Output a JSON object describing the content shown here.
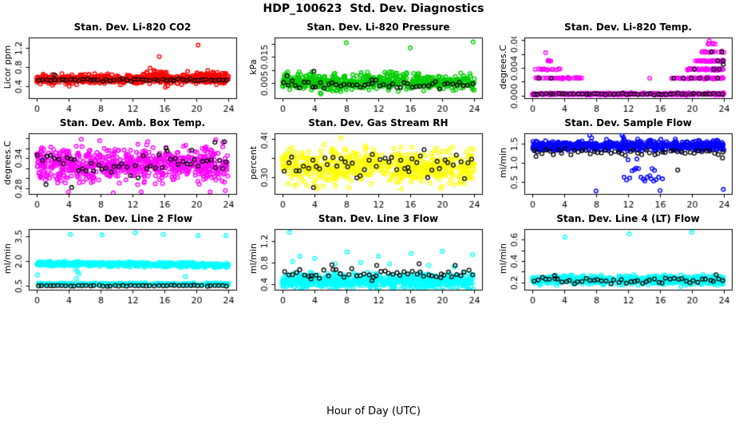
{
  "figure": {
    "title": "HDP_100623  Std. Dev. Diagnostics",
    "xlabel": "Hour of Day (UTC)",
    "background": "#ffffff",
    "axis_color": "#000000",
    "overlay_color": "#000000",
    "xlim": [
      -0.96,
      24.96
    ],
    "xticks": [
      0,
      4,
      8,
      12,
      16,
      20,
      24
    ],
    "xtick_labels": [
      "0",
      "4",
      "8",
      "12",
      "16",
      "20",
      "24"
    ],
    "marker": "open-circle",
    "grid": false,
    "legend": "none"
  },
  "chart_data": [
    {
      "type": "scatter",
      "title": "Stan. Dev. Li-820 CO2",
      "ylabel": "Licor ppm",
      "color": "#FF0000",
      "ylim": [
        0.15,
        1.42
      ],
      "ytick_values": [
        0.4,
        0.8,
        1.2
      ],
      "ytick_labels": [
        "0.4",
        "0.8",
        "1.2"
      ],
      "bands": [
        {
          "x_range": [
            0,
            24
          ],
          "center": 0.55,
          "spread": 0.05,
          "n": 480,
          "trend": 0
        },
        {
          "x_range": [
            13.5,
            16.5
          ],
          "center": 0.62,
          "spread": 0.06,
          "n": 28,
          "trend": 0
        },
        {
          "x_range": [
            20,
            24
          ],
          "center": 0.6,
          "spread": 0.055,
          "n": 60,
          "trend": 0
        }
      ],
      "outliers": [
        [
          20.2,
          1.26
        ],
        [
          15.35,
          1.02
        ],
        [
          14.2,
          0.78
        ],
        [
          14.7,
          0.73
        ],
        [
          15.1,
          0.7
        ],
        [
          15.9,
          0.69
        ],
        [
          16.2,
          0.66
        ],
        [
          18.9,
          0.71
        ],
        [
          13.8,
          0.68
        ],
        [
          21.4,
          0.73
        ],
        [
          22.6,
          0.69
        ],
        [
          23.2,
          0.67
        ],
        [
          8.9,
          0.66
        ],
        [
          4.1,
          0.4
        ],
        [
          2.0,
          0.42
        ],
        [
          10.5,
          0.43
        ],
        [
          16.1,
          0.38
        ],
        [
          16.4,
          0.41
        ]
      ],
      "black": {
        "center": 0.53,
        "spread": 0.015,
        "extra": [
          [
            2.25,
            0.64
          ]
        ]
      }
    },
    {
      "type": "scatter",
      "title": "Stan. Dev. Li-820 Pressure",
      "ylabel": "kPa",
      "color": "#00CD00",
      "ylim": [
        -0.0008,
        0.0225
      ],
      "ytick_values": [
        0.005,
        0.01,
        0.015,
        0.02
      ],
      "ytick_labels": [
        "0.005",
        "",
        "0.015",
        ""
      ],
      "bands": [
        {
          "x_range": [
            0,
            24
          ],
          "center": 0.0055,
          "spread": 0.0016,
          "n": 520,
          "trend": 0
        }
      ],
      "outliers": [
        [
          8.0,
          0.0205
        ],
        [
          16.0,
          0.0185
        ],
        [
          23.85,
          0.0208
        ],
        [
          4.85,
          0.0008
        ],
        [
          4.75,
          0.0012
        ]
      ],
      "black": {
        "center": 0.0046,
        "spread": 0.0008,
        "extra": [
          [
            3.95,
            0.0095
          ],
          [
            0.6,
            0.0078
          ],
          [
            11.2,
            0.0062
          ]
        ]
      }
    },
    {
      "type": "scatter",
      "title": "Stan. Dev. Li-820 Temp.",
      "ylabel": "degrees.C",
      "color": "#FF00FF",
      "ylim": [
        -0.0004,
        0.0084
      ],
      "ytick_values": [
        0.0,
        0.002,
        0.004,
        0.006,
        0.008
      ],
      "ytick_labels": [
        "0.000",
        "",
        "0.004",
        "",
        "0.008"
      ],
      "bands": [
        {
          "x_range": [
            0,
            24
          ],
          "center": 0.0002,
          "spread": 8e-05,
          "n": 420,
          "trend": 0
        },
        {
          "x_range": [
            0,
            6.3
          ],
          "center": 0.0025,
          "spread": 6e-05,
          "n": 34,
          "trend": 0
        },
        {
          "x_range": [
            0.4,
            3.6
          ],
          "center": 0.0038,
          "spread": 6e-05,
          "n": 14,
          "trend": 0
        },
        {
          "x_range": [
            1.8,
            2.4
          ],
          "center": 0.005,
          "spread": 6e-05,
          "n": 4,
          "trend": 0
        },
        {
          "x_range": [
            17.3,
            24
          ],
          "center": 0.0025,
          "spread": 6e-05,
          "n": 60,
          "trend": 0
        },
        {
          "x_range": [
            19.3,
            24
          ],
          "center": 0.0038,
          "spread": 6e-05,
          "n": 55,
          "trend": 0
        },
        {
          "x_range": [
            20.4,
            24
          ],
          "center": 0.005,
          "spread": 6e-05,
          "n": 28,
          "trend": 0
        },
        {
          "x_range": [
            21.2,
            24
          ],
          "center": 0.0063,
          "spread": 6e-05,
          "n": 14,
          "trend": 0
        },
        {
          "x_range": [
            21.8,
            23.4
          ],
          "center": 0.0075,
          "spread": 6e-05,
          "n": 6,
          "trend": 0
        }
      ],
      "outliers": [
        [
          1.7,
          0.0062
        ],
        [
          2.1,
          0.005
        ],
        [
          14.7,
          0.0025
        ],
        [
          5.6,
          0.0025
        ],
        [
          5.9,
          0.0025
        ],
        [
          22.15,
          0.0079
        ]
      ],
      "black": {
        "center": 0.0002,
        "spread": 6e-05,
        "extra": [
          [
            0.9,
            0.0025
          ],
          [
            2.4,
            0.0025
          ],
          [
            17.7,
            0.0025
          ],
          [
            18.9,
            0.0025
          ],
          [
            19.9,
            0.0025
          ],
          [
            20.9,
            0.0025
          ],
          [
            21.9,
            0.0025
          ],
          [
            23.2,
            0.0025
          ],
          [
            20.3,
            0.0038
          ],
          [
            22.7,
            0.0038
          ],
          [
            23.4,
            0.0038
          ],
          [
            23.2,
            0.005
          ],
          [
            23.9,
            0.005
          ],
          [
            22.4,
            0.0063
          ],
          [
            23.7,
            0.0063
          ],
          [
            23.9,
            0.0045
          ]
        ]
      }
    },
    {
      "type": "scatter",
      "title": "Stan. Dev. Amb. Box Temp.",
      "ylabel": "degrees.C",
      "color": "#FF00FF",
      "ylim": [
        0.268,
        0.39
      ],
      "ytick_values": [
        0.28,
        0.3,
        0.32,
        0.34,
        0.36,
        0.38
      ],
      "ytick_labels": [
        "0.28",
        "",
        "",
        "0.34",
        "",
        ""
      ],
      "bands": [
        {
          "x_range": [
            0,
            24
          ],
          "center": 0.327,
          "spread": 0.017,
          "n": 700,
          "trend": 0
        }
      ],
      "outliers": [
        [
          5.6,
          0.378
        ],
        [
          7.9,
          0.375
        ],
        [
          22.4,
          0.377
        ],
        [
          23.3,
          0.372
        ],
        [
          13.9,
          0.373
        ],
        [
          4.0,
          0.272
        ],
        [
          9.6,
          0.27
        ],
        [
          13.1,
          0.272
        ],
        [
          21.7,
          0.272
        ],
        [
          23.6,
          0.275
        ]
      ],
      "black": {
        "center": 0.328,
        "spread": 0.012,
        "extra": [
          [
            4.4,
            0.281
          ],
          [
            1.2,
            0.287
          ],
          [
            22.3,
            0.372
          ],
          [
            23.5,
            0.373
          ],
          [
            19.4,
            0.356
          ],
          [
            16.2,
            0.36
          ]
        ]
      }
    },
    {
      "type": "scatter",
      "title": "Stan. Dev. Gas Stream RH",
      "ylabel": "percent",
      "color": "#FFFF00",
      "ylim": [
        0.255,
        0.415
      ],
      "ytick_values": [
        0.3,
        0.35,
        0.4
      ],
      "ytick_labels": [
        "0.30",
        "",
        "0.40"
      ],
      "bands": [
        {
          "x_range": [
            0,
            24
          ],
          "center": 0.327,
          "spread": 0.022,
          "n": 620,
          "trend": 0
        }
      ],
      "outliers": [
        [
          7.35,
          0.403
        ],
        [
          5.2,
          0.385
        ],
        [
          10.4,
          0.382
        ],
        [
          16.2,
          0.378
        ],
        [
          21.3,
          0.378
        ],
        [
          23.5,
          0.375
        ],
        [
          4.4,
          0.268
        ],
        [
          8.3,
          0.272
        ],
        [
          14.9,
          0.268
        ],
        [
          19.8,
          0.27
        ],
        [
          3.9,
          0.273
        ]
      ],
      "black": {
        "center": 0.332,
        "spread": 0.02,
        "extra": [
          [
            3.9,
            0.272
          ],
          [
            15.7,
            0.325
          ]
        ]
      }
    },
    {
      "type": "scatter",
      "title": "Stan. Dev. Sample Flow",
      "ylabel": "ml/min",
      "color": "#0000FF",
      "ylim": [
        0.18,
        1.78
      ],
      "ytick_values": [
        0.5,
        1.0,
        1.5
      ],
      "ytick_labels": [
        "0.5",
        "1.0",
        "1.5"
      ],
      "bands": [
        {
          "x_range": [
            0,
            24
          ],
          "center": 1.45,
          "spread": 0.06,
          "n": 600,
          "trend": 0
        }
      ],
      "outliers": [
        [
          7.2,
          1.73
        ],
        [
          7.45,
          1.66
        ],
        [
          11.25,
          1.73
        ],
        [
          11.4,
          1.68
        ],
        [
          11.5,
          1.62
        ],
        [
          13.2,
          1.63
        ],
        [
          9.3,
          1.62
        ],
        [
          14.8,
          1.6
        ],
        [
          16.1,
          1.62
        ],
        [
          17.9,
          1.63
        ],
        [
          8.0,
          0.26
        ],
        [
          16.0,
          0.27
        ],
        [
          23.9,
          0.3
        ],
        [
          11.5,
          0.62
        ],
        [
          11.8,
          0.55
        ],
        [
          12.2,
          0.6
        ],
        [
          12.5,
          0.79
        ],
        [
          12.8,
          0.82
        ],
        [
          13.0,
          0.86
        ],
        [
          13.3,
          0.85
        ],
        [
          13.6,
          0.62
        ],
        [
          13.9,
          0.57
        ],
        [
          14.1,
          0.52
        ],
        [
          14.4,
          0.62
        ],
        [
          14.7,
          0.66
        ],
        [
          14.9,
          0.58
        ],
        [
          15.2,
          0.52
        ],
        [
          15.5,
          0.56
        ],
        [
          15.8,
          0.62
        ],
        [
          16.3,
          0.58
        ],
        [
          12.0,
          1.08
        ],
        [
          13.1,
          1.1
        ],
        [
          15.0,
          0.85
        ],
        [
          15.3,
          0.8
        ]
      ],
      "black": {
        "center": 1.27,
        "spread": 0.045,
        "extra": [
          [
            18.2,
            0.81
          ],
          [
            23.8,
            1.13
          ],
          [
            0.5,
            1.17
          ]
        ]
      }
    },
    {
      "type": "scatter",
      "title": "Stan. Dev. Line 2 Flow",
      "ylabel": "ml/min",
      "color": "#00FFFF",
      "ylim": [
        0.28,
        3.95
      ],
      "ytick_values": [
        0.5,
        2.0,
        3.5
      ],
      "ytick_labels": [
        "0.5",
        "2.0",
        "3.5"
      ],
      "bands": [
        {
          "x_range": [
            0,
            24
          ],
          "center": 1.88,
          "spread": 0.07,
          "n": 520,
          "trend": -0.12
        },
        {
          "x_range": [
            0,
            24
          ],
          "center": 0.62,
          "spread": 0.035,
          "n": 260,
          "trend": 0
        }
      ],
      "outliers": [
        [
          4.25,
          3.62
        ],
        [
          8.2,
          3.6
        ],
        [
          12.35,
          3.72
        ],
        [
          15.85,
          3.62
        ],
        [
          20.2,
          3.55
        ],
        [
          23.65,
          3.55
        ],
        [
          0.12,
          1.17
        ],
        [
          4.9,
          1.52
        ],
        [
          5.1,
          1.38
        ],
        [
          5.3,
          1.25
        ],
        [
          18.6,
          1.08
        ],
        [
          5.0,
          0.95
        ]
      ],
      "black": {
        "center": 0.52,
        "spread": 0.018,
        "extra": []
      }
    },
    {
      "type": "scatter",
      "title": "Stan. Dev. Line 3 Flow",
      "ylabel": "ml/min",
      "color": "#00FFFF",
      "ylim": [
        0.3,
        1.42
      ],
      "ytick_values": [
        0.4,
        0.8,
        1.2
      ],
      "ytick_labels": [
        "0.4",
        "0.8",
        "1.2"
      ],
      "bands": [
        {
          "x_range": [
            0,
            24
          ],
          "center": 0.46,
          "spread": 0.07,
          "n": 650,
          "trend": 0
        }
      ],
      "outliers": [
        [
          0.9,
          1.36
        ],
        [
          8.1,
          1.0
        ],
        [
          12.0,
          0.92
        ],
        [
          16.1,
          0.97
        ],
        [
          20.0,
          1.01
        ],
        [
          23.8,
          0.95
        ],
        [
          2.2,
          0.92
        ],
        [
          4.05,
          0.88
        ],
        [
          1.3,
          0.82
        ],
        [
          6.6,
          0.78
        ],
        [
          9.8,
          0.8
        ],
        [
          13.4,
          0.78
        ],
        [
          18.3,
          0.75
        ],
        [
          21.5,
          0.72
        ]
      ],
      "black": {
        "center": 0.6,
        "spread": 0.045,
        "extra": [
          [
            6.2,
            0.76
          ],
          [
            11.8,
            0.75
          ],
          [
            17.1,
            0.78
          ],
          [
            21.6,
            0.75
          ],
          [
            11.2,
            0.47
          ],
          [
            3.6,
            0.5
          ],
          [
            19.8,
            0.52
          ]
        ]
      }
    },
    {
      "type": "scatter",
      "title": "Stan. Dev. Line 4 (LT) Flow",
      "ylabel": "ml/min",
      "color": "#00FFFF",
      "ylim": [
        0.13,
        0.7
      ],
      "ytick_values": [
        0.2,
        0.3,
        0.4,
        0.5,
        0.6
      ],
      "ytick_labels": [
        "0.2",
        "",
        "0.4",
        "",
        "0.6"
      ],
      "bands": [
        {
          "x_range": [
            0,
            24
          ],
          "center": 0.222,
          "spread": 0.022,
          "n": 600,
          "trend": 0
        }
      ],
      "outliers": [
        [
          4.1,
          0.625
        ],
        [
          12.15,
          0.655
        ],
        [
          19.95,
          0.672
        ],
        [
          18.6,
          0.16
        ]
      ],
      "black": {
        "center": 0.215,
        "spread": 0.015,
        "extra": [
          [
            2.8,
            0.262
          ],
          [
            23.0,
            0.27
          ]
        ]
      }
    }
  ]
}
